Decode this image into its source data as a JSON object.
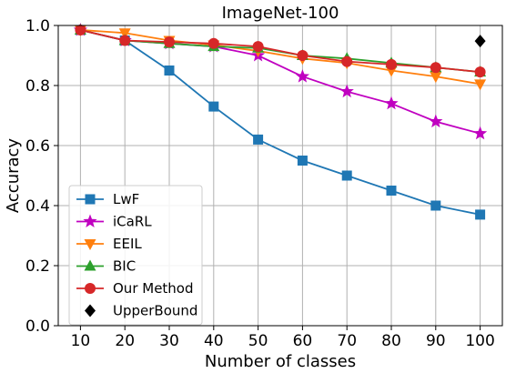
{
  "chart_data": {
    "type": "line",
    "title": "ImageNet-100",
    "xlabel": "Number of classes",
    "ylabel": "Accuracy",
    "x": [
      10,
      20,
      30,
      40,
      50,
      60,
      70,
      80,
      90,
      100
    ],
    "x_ticks": [
      "10",
      "20",
      "30",
      "40",
      "50",
      "60",
      "70",
      "80",
      "90",
      "100"
    ],
    "xlim": [
      5,
      105
    ],
    "ylim": [
      0.0,
      1.0
    ],
    "y_ticks": [
      "0.0",
      "0.2",
      "0.4",
      "0.6",
      "0.8",
      "1.0"
    ],
    "grid": true,
    "legend_position": "bottom-left",
    "series": [
      {
        "name": "LwF",
        "color": "#1f77b4",
        "marker": "square",
        "values": [
          0.985,
          0.95,
          0.85,
          0.73,
          0.62,
          0.55,
          0.5,
          0.45,
          0.4,
          0.37
        ]
      },
      {
        "name": "iCaRL",
        "color": "#c000c0",
        "marker": "star",
        "values": [
          0.985,
          0.95,
          0.94,
          0.93,
          0.9,
          0.83,
          0.78,
          0.74,
          0.68,
          0.64
        ]
      },
      {
        "name": "EEIL",
        "color": "#ff7f0e",
        "marker": "triangle-down",
        "values": [
          0.985,
          0.975,
          0.95,
          0.935,
          0.915,
          0.89,
          0.875,
          0.85,
          0.83,
          0.805
        ]
      },
      {
        "name": "BIC",
        "color": "#2ca02c",
        "marker": "triangle-up",
        "values": [
          0.985,
          0.95,
          0.94,
          0.93,
          0.925,
          0.9,
          0.89,
          0.875,
          0.86,
          0.845
        ]
      },
      {
        "name": "Our Method",
        "color": "#d62728",
        "marker": "circle",
        "values": [
          0.985,
          0.95,
          0.945,
          0.94,
          0.93,
          0.9,
          0.88,
          0.87,
          0.86,
          0.845
        ]
      },
      {
        "name": "UpperBound",
        "color": "#000000",
        "marker": "diamond",
        "x": [
          100
        ],
        "values": [
          0.948
        ]
      }
    ]
  }
}
